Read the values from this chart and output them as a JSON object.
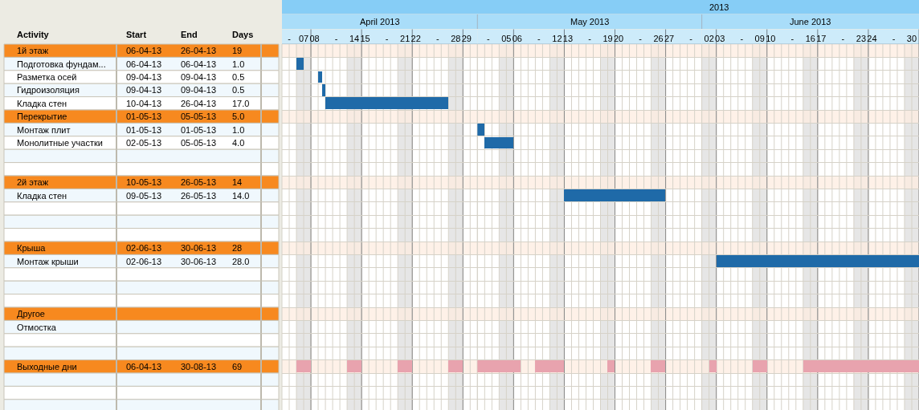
{
  "chart_data": [
    {
      "type": "other",
      "ylabel": "Activity",
      "categories": [
        "Start",
        "End",
        "Days"
      ],
      "y_categories": [
        "1й этаж",
        "Подготовка фундам...",
        "Разметка осей",
        "Гидроизоляция",
        "Кладка стен",
        "Перекрытие",
        "Монтаж плит",
        "Монолитные участки",
        null,
        null,
        "2й этаж",
        "Кладка стен",
        null,
        null,
        null,
        "Крыша",
        "Монтаж крыши",
        null,
        null,
        null,
        "Другое",
        "Отмостка",
        null,
        null,
        "Выходные дни",
        null,
        null,
        null
      ],
      "cell_labels": [
        [
          "06-04-13",
          "26-04-13",
          "19"
        ],
        [
          "06-04-13",
          "06-04-13",
          "1.0"
        ],
        [
          "09-04-13",
          "09-04-13",
          "0.5"
        ],
        [
          "09-04-13",
          "09-04-13",
          "0.5"
        ],
        [
          "10-04-13",
          "26-04-13",
          "17.0"
        ],
        [
          "01-05-13",
          "05-05-13",
          "5.0"
        ],
        [
          "01-05-13",
          "01-05-13",
          "1.0"
        ],
        [
          "02-05-13",
          "05-05-13",
          "4.0"
        ],
        [
          null,
          null,
          null
        ],
        [
          null,
          null,
          null
        ],
        [
          "10-05-13",
          "26-05-13",
          "14"
        ],
        [
          "09-05-13",
          "26-05-13",
          "14.0"
        ],
        [
          null,
          null,
          null
        ],
        [
          null,
          null,
          null
        ],
        [
          null,
          null,
          null
        ],
        [
          "02-06-13",
          "30-06-13",
          "28"
        ],
        [
          "02-06-13",
          "30-06-13",
          "28.0"
        ],
        [
          null,
          null,
          null
        ],
        [
          null,
          null,
          null
        ],
        [
          null,
          null,
          null
        ],
        [
          null,
          null,
          null
        ],
        [
          null,
          null,
          null
        ],
        [
          null,
          null,
          null
        ],
        [
          null,
          null,
          null
        ],
        [
          "06-04-13",
          "30-08-13",
          "69"
        ],
        [
          null,
          null,
          null
        ],
        [
          null,
          null,
          null
        ],
        [
          null,
          null,
          null
        ]
      ],
      "colors": [
        "#f7891f",
        "#f0f8fd",
        "#ffffff",
        "#f0f8fd",
        "#ffffff",
        "#f7891f",
        "#f0f8fd",
        "#ffffff",
        "#f0f8fd",
        "#ffffff",
        "#f7891f",
        "#f0f8fd",
        "#ffffff",
        "#f0f8fd",
        "#ffffff",
        "#f7891f",
        "#f0f8fd",
        "#ffffff",
        "#f0f8fd",
        "#ffffff",
        "#f7891f",
        "#f0f8fd",
        "#ffffff",
        "#f0f8fd",
        "#f7891f",
        "#f0f8fd",
        "#ffffff",
        "#f0f8fd"
      ]
    },
    {
      "type": "bar",
      "orientation": "horizontal",
      "title": "April 2013",
      "annotations": [
        "2013"
      ],
      "categories": [
        "1й этаж",
        "Подготовка фундам...",
        "Разметка осей",
        "Гидроизоляция",
        "Кладка стен",
        "Перекрытие",
        "Монтаж плит",
        "Монолитные участки",
        null,
        null,
        "2й этаж",
        "Кладка стен",
        null,
        null,
        null,
        "Крыша",
        "Монтаж крыши",
        null,
        null,
        null,
        "Другое",
        "Отмостка",
        null,
        null,
        "Выходные дни",
        null,
        null,
        null
      ],
      "tick_labels": "x",
      "series": [
        {
          "color": "#1f6aa8",
          "base": [
            null,
            6,
            9,
            9.5,
            10,
            null,
            null,
            null,
            null,
            null,
            null,
            null,
            null,
            null,
            null,
            null,
            null,
            null,
            null,
            null,
            null,
            null,
            null,
            null,
            null,
            null,
            null,
            null
          ],
          "values": [
            null,
            1,
            0.5,
            0.5,
            17,
            null,
            null,
            null,
            null,
            null,
            null,
            null,
            null,
            null,
            null,
            null,
            null,
            null,
            null,
            null,
            null,
            null,
            null,
            null,
            null,
            null,
            null,
            null
          ]
        },
        {
          "color": "#e8a3ae",
          "base": [
            null,
            null,
            null,
            null,
            null,
            null,
            null,
            null,
            null,
            null,
            null,
            null,
            null,
            null,
            null,
            null,
            null,
            null,
            null,
            null,
            null,
            null,
            null,
            null,
            6,
            null,
            null,
            null
          ],
          "values": [
            null,
            null,
            null,
            null,
            null,
            null,
            null,
            null,
            null,
            null,
            null,
            null,
            null,
            null,
            null,
            null,
            null,
            null,
            null,
            null,
            null,
            null,
            null,
            null,
            2,
            null,
            null,
            null
          ]
        },
        {
          "color": "#e8a3ae",
          "base": [
            null,
            null,
            null,
            null,
            null,
            null,
            null,
            null,
            null,
            null,
            null,
            null,
            null,
            null,
            null,
            null,
            null,
            null,
            null,
            null,
            null,
            null,
            null,
            null,
            13,
            null,
            null,
            null
          ],
          "values": [
            null,
            null,
            null,
            null,
            null,
            null,
            null,
            null,
            null,
            null,
            null,
            null,
            null,
            null,
            null,
            null,
            null,
            null,
            null,
            null,
            null,
            null,
            null,
            null,
            2,
            null,
            null,
            null
          ]
        },
        {
          "color": "#e8a3ae",
          "base": [
            null,
            null,
            null,
            null,
            null,
            null,
            null,
            null,
            null,
            null,
            null,
            null,
            null,
            null,
            null,
            null,
            null,
            null,
            null,
            null,
            null,
            null,
            null,
            null,
            20,
            null,
            null,
            null
          ],
          "values": [
            null,
            null,
            null,
            null,
            null,
            null,
            null,
            null,
            null,
            null,
            null,
            null,
            null,
            null,
            null,
            null,
            null,
            null,
            null,
            null,
            null,
            null,
            null,
            null,
            2,
            null,
            null,
            null
          ]
        },
        {
          "color": "#e8a3ae",
          "base": [
            null,
            null,
            null,
            null,
            null,
            null,
            null,
            null,
            null,
            null,
            null,
            null,
            null,
            null,
            null,
            null,
            null,
            null,
            null,
            null,
            null,
            null,
            null,
            null,
            27,
            null,
            null,
            null
          ],
          "values": [
            null,
            null,
            null,
            null,
            null,
            null,
            null,
            null,
            null,
            null,
            null,
            null,
            null,
            null,
            null,
            null,
            null,
            null,
            null,
            null,
            null,
            null,
            null,
            null,
            2,
            null,
            null,
            null
          ]
        }
      ],
      "xlim": [
        4,
        31
      ],
      "xticks": [
        {
          "value": 5,
          "label": "-"
        },
        {
          "value": 7,
          "label": "07"
        },
        {
          "value": 8.5,
          "label": "08"
        },
        {
          "value": 11.5,
          "label": "-"
        },
        {
          "value": 14,
          "label": "14"
        },
        {
          "value": 15.5,
          "label": "15"
        },
        {
          "value": 18.5,
          "label": "-"
        },
        {
          "value": 21,
          "label": "21"
        },
        {
          "value": 22.5,
          "label": "22"
        },
        {
          "value": 25.5,
          "label": "-"
        },
        {
          "value": 28,
          "label": "28"
        },
        {
          "value": 29.5,
          "label": "29"
        },
        {
          "value": 4,
          "label": null
        },
        {
          "value": 6,
          "label": null
        },
        {
          "value": 8,
          "label": null
        },
        {
          "value": 9,
          "label": null
        },
        {
          "value": 10,
          "label": null
        },
        {
          "value": 11,
          "label": null
        },
        {
          "value": 12,
          "label": null
        },
        {
          "value": 13,
          "label": null
        },
        {
          "value": 15,
          "label": null
        },
        {
          "value": 16,
          "label": null
        },
        {
          "value": 17,
          "label": null
        },
        {
          "value": 18,
          "label": null
        },
        {
          "value": 19,
          "label": null
        },
        {
          "value": 20,
          "label": null
        },
        {
          "value": 22,
          "label": null
        },
        {
          "value": 23,
          "label": null
        },
        {
          "value": 24,
          "label": null
        },
        {
          "value": 25,
          "label": null
        },
        {
          "value": 26,
          "label": null
        },
        {
          "value": 27,
          "label": null
        },
        {
          "value": 29,
          "label": null
        },
        {
          "value": 30,
          "label": null
        },
        {
          "value": 31,
          "label": null
        }
      ],
      "bands": [
        {
          "axis": "x",
          "from": 6,
          "to": 8,
          "color": "#e6e6e6"
        },
        {
          "axis": "x",
          "from": 13,
          "to": 15,
          "color": "#e6e6e6"
        },
        {
          "axis": "x",
          "from": 20,
          "to": 22,
          "color": "#e6e6e6"
        },
        {
          "axis": "x",
          "from": 27,
          "to": 29,
          "color": "#e6e6e6"
        },
        {
          "axis": "y",
          "from": "1й этаж",
          "to": "1й этаж",
          "color": "#fdece0"
        },
        {
          "axis": "y",
          "from": "Перекрытие",
          "to": "Перекрытие",
          "color": "#fdece0"
        },
        {
          "axis": "y",
          "from": "2й этаж",
          "to": "2й этаж",
          "color": "#fdece0"
        },
        {
          "axis": "y",
          "from": "Крыша",
          "to": "Крыша",
          "color": "#fdece0"
        },
        {
          "axis": "y",
          "from": "Другое",
          "to": "Другое",
          "color": "#fdece0"
        },
        {
          "axis": "y",
          "from": "Выходные дни",
          "to": "Выходные дни",
          "color": "#fdece0"
        }
      ],
      "grid": true
    },
    {
      "type": "bar",
      "orientation": "horizontal",
      "title": "May 2013",
      "categories": [
        "1й этаж",
        "Подготовка фундам...",
        "Разметка осей",
        "Гидроизоляция",
        "Кладка стен",
        "Перекрытие",
        "Монтаж плит",
        "Монолитные участки",
        null,
        null,
        "2й этаж",
        "Кладка стен",
        null,
        null,
        null,
        "Крыша",
        "Монтаж крыши",
        null,
        null,
        null,
        "Другое",
        "Отмостка",
        null,
        null,
        "Выходные дни",
        null,
        null,
        null
      ],
      "tick_labels": "x",
      "series": [
        {
          "color": "#1f6aa8",
          "base": [
            null,
            null,
            null,
            null,
            null,
            null,
            1,
            2,
            null,
            null,
            null,
            13,
            null,
            null,
            null,
            null,
            null,
            null,
            null,
            null,
            null,
            null,
            null,
            null,
            null,
            null,
            null,
            null
          ],
          "values": [
            null,
            null,
            null,
            null,
            null,
            null,
            1,
            4,
            null,
            null,
            null,
            14,
            null,
            null,
            null,
            null,
            null,
            null,
            null,
            null,
            null,
            null,
            null,
            null,
            null,
            null,
            null,
            null
          ]
        },
        {
          "color": "#e8a3ae",
          "base": [
            null,
            null,
            null,
            null,
            null,
            null,
            null,
            null,
            null,
            null,
            null,
            null,
            null,
            null,
            null,
            null,
            null,
            null,
            null,
            null,
            null,
            null,
            null,
            null,
            1,
            null,
            null,
            null
          ],
          "values": [
            null,
            null,
            null,
            null,
            null,
            null,
            null,
            null,
            null,
            null,
            null,
            null,
            null,
            null,
            null,
            null,
            null,
            null,
            null,
            null,
            null,
            null,
            null,
            null,
            6,
            null,
            null,
            null
          ]
        },
        {
          "color": "#e8a3ae",
          "base": [
            null,
            null,
            null,
            null,
            null,
            null,
            null,
            null,
            null,
            null,
            null,
            null,
            null,
            null,
            null,
            null,
            null,
            null,
            null,
            null,
            null,
            null,
            null,
            null,
            9,
            null,
            null,
            null
          ],
          "values": [
            null,
            null,
            null,
            null,
            null,
            null,
            null,
            null,
            null,
            null,
            null,
            null,
            null,
            null,
            null,
            null,
            null,
            null,
            null,
            null,
            null,
            null,
            null,
            null,
            4,
            null,
            null,
            null
          ]
        },
        {
          "color": "#e8a3ae",
          "base": [
            null,
            null,
            null,
            null,
            null,
            null,
            null,
            null,
            null,
            null,
            null,
            null,
            null,
            null,
            null,
            null,
            null,
            null,
            null,
            null,
            null,
            null,
            null,
            null,
            19,
            null,
            null,
            null
          ],
          "values": [
            null,
            null,
            null,
            null,
            null,
            null,
            null,
            null,
            null,
            null,
            null,
            null,
            null,
            null,
            null,
            null,
            null,
            null,
            null,
            null,
            null,
            null,
            null,
            null,
            1,
            null,
            null,
            null
          ]
        },
        {
          "color": "#e8a3ae",
          "base": [
            null,
            null,
            null,
            null,
            null,
            null,
            null,
            null,
            null,
            null,
            null,
            null,
            null,
            null,
            null,
            null,
            null,
            null,
            null,
            null,
            null,
            null,
            null,
            null,
            25,
            null,
            null,
            null
          ],
          "values": [
            null,
            null,
            null,
            null,
            null,
            null,
            null,
            null,
            null,
            null,
            null,
            null,
            null,
            null,
            null,
            null,
            null,
            null,
            null,
            null,
            null,
            null,
            null,
            null,
            2,
            null,
            null,
            null
          ]
        }
      ],
      "xlim": [
        1,
        32
      ],
      "xticks": [
        {
          "value": 2.5,
          "label": "-"
        },
        {
          "value": 5,
          "label": "05"
        },
        {
          "value": 6.5,
          "label": "06"
        },
        {
          "value": 9.5,
          "label": "-"
        },
        {
          "value": 12,
          "label": "12"
        },
        {
          "value": 13.5,
          "label": "13"
        },
        {
          "value": 16.5,
          "label": "-"
        },
        {
          "value": 19,
          "label": "19"
        },
        {
          "value": 20.5,
          "label": "20"
        },
        {
          "value": 23.5,
          "label": "-"
        },
        {
          "value": 26,
          "label": "26"
        },
        {
          "value": 27.5,
          "label": "27"
        },
        {
          "value": 30.5,
          "label": "-"
        },
        {
          "value": 1,
          "label": null
        },
        {
          "value": 2,
          "label": null
        },
        {
          "value": 3,
          "label": null
        },
        {
          "value": 4,
          "label": null
        },
        {
          "value": 6,
          "label": null
        },
        {
          "value": 7,
          "label": null
        },
        {
          "value": 8,
          "label": null
        },
        {
          "value": 9,
          "label": null
        },
        {
          "value": 10,
          "label": null
        },
        {
          "value": 11,
          "label": null
        },
        {
          "value": 13,
          "label": null
        },
        {
          "value": 14,
          "label": null
        },
        {
          "value": 15,
          "label": null
        },
        {
          "value": 16,
          "label": null
        },
        {
          "value": 17,
          "label": null
        },
        {
          "value": 18,
          "label": null
        },
        {
          "value": 20,
          "label": null
        },
        {
          "value": 21,
          "label": null
        },
        {
          "value": 22,
          "label": null
        },
        {
          "value": 23,
          "label": null
        },
        {
          "value": 24,
          "label": null
        },
        {
          "value": 25,
          "label": null
        },
        {
          "value": 27,
          "label": null
        },
        {
          "value": 28,
          "label": null
        },
        {
          "value": 29,
          "label": null
        },
        {
          "value": 30,
          "label": null
        },
        {
          "value": 31,
          "label": null
        },
        {
          "value": 32,
          "label": null
        }
      ],
      "bands": [
        {
          "axis": "x",
          "from": 4,
          "to": 6,
          "color": "#e6e6e6"
        },
        {
          "axis": "x",
          "from": 11,
          "to": 13,
          "color": "#e6e6e6"
        },
        {
          "axis": "x",
          "from": 18,
          "to": 20,
          "color": "#e6e6e6"
        },
        {
          "axis": "x",
          "from": 25,
          "to": 27,
          "color": "#e6e6e6"
        },
        {
          "axis": "y",
          "from": "1й этаж",
          "to": "1й этаж",
          "color": "#fdece0"
        },
        {
          "axis": "y",
          "from": "Перекрытие",
          "to": "Перекрытие",
          "color": "#fdece0"
        },
        {
          "axis": "y",
          "from": "2й этаж",
          "to": "2й этаж",
          "color": "#fdece0"
        },
        {
          "axis": "y",
          "from": "Крыша",
          "to": "Крыша",
          "color": "#fdece0"
        },
        {
          "axis": "y",
          "from": "Другое",
          "to": "Другое",
          "color": "#fdece0"
        },
        {
          "axis": "y",
          "from": "Выходные дни",
          "to": "Выходные дни",
          "color": "#fdece0"
        }
      ],
      "grid": true
    },
    {
      "type": "bar",
      "orientation": "horizontal",
      "title": "June 2013",
      "categories": [
        "1й этаж",
        "Подготовка фундам...",
        "Разметка осей",
        "Гидроизоляция",
        "Кладка стен",
        "Перекрытие",
        "Монтаж плит",
        "Монолитные участки",
        null,
        null,
        "2й этаж",
        "Кладка стен",
        null,
        null,
        null,
        "Крыша",
        "Монтаж крыши",
        null,
        null,
        null,
        "Другое",
        "Отмостка",
        null,
        null,
        "Выходные дни",
        null,
        null,
        null
      ],
      "tick_labels": "x",
      "series": [
        {
          "color": "#1f6aa8",
          "base": [
            null,
            null,
            null,
            null,
            null,
            null,
            null,
            null,
            null,
            null,
            null,
            null,
            null,
            null,
            null,
            null,
            3,
            null,
            null,
            null,
            null,
            null,
            null,
            null,
            null,
            null,
            null,
            null
          ],
          "values": [
            null,
            null,
            null,
            null,
            null,
            null,
            null,
            null,
            null,
            null,
            null,
            null,
            null,
            null,
            null,
            null,
            28,
            null,
            null,
            null,
            null,
            null,
            null,
            null,
            null,
            null,
            null,
            null
          ]
        },
        {
          "color": "#e8a3ae",
          "base": [
            null,
            null,
            null,
            null,
            null,
            null,
            null,
            null,
            null,
            null,
            null,
            null,
            null,
            null,
            null,
            null,
            null,
            null,
            null,
            null,
            null,
            null,
            null,
            null,
            2,
            null,
            null,
            null
          ],
          "values": [
            null,
            null,
            null,
            null,
            null,
            null,
            null,
            null,
            null,
            null,
            null,
            null,
            null,
            null,
            null,
            null,
            null,
            null,
            null,
            null,
            null,
            null,
            null,
            null,
            1,
            null,
            null,
            null
          ]
        },
        {
          "color": "#e8a3ae",
          "base": [
            null,
            null,
            null,
            null,
            null,
            null,
            null,
            null,
            null,
            null,
            null,
            null,
            null,
            null,
            null,
            null,
            null,
            null,
            null,
            null,
            null,
            null,
            null,
            null,
            8,
            null,
            null,
            null
          ],
          "values": [
            null,
            null,
            null,
            null,
            null,
            null,
            null,
            null,
            null,
            null,
            null,
            null,
            null,
            null,
            null,
            null,
            null,
            null,
            null,
            null,
            null,
            null,
            null,
            null,
            2,
            null,
            null,
            null
          ]
        },
        {
          "color": "#e8a3ae",
          "base": [
            null,
            null,
            null,
            null,
            null,
            null,
            null,
            null,
            null,
            null,
            null,
            null,
            null,
            null,
            null,
            null,
            null,
            null,
            null,
            null,
            null,
            null,
            null,
            null,
            15,
            null,
            null,
            null
          ],
          "values": [
            null,
            null,
            null,
            null,
            null,
            null,
            null,
            null,
            null,
            null,
            null,
            null,
            null,
            null,
            null,
            null,
            null,
            null,
            null,
            null,
            null,
            null,
            null,
            null,
            16,
            null,
            null,
            null
          ]
        }
      ],
      "xlim": [
        1,
        31
      ],
      "xticks": [
        {
          "value": 2,
          "label": "02"
        },
        {
          "value": 3.5,
          "label": "03"
        },
        {
          "value": 6.5,
          "label": "-"
        },
        {
          "value": 9,
          "label": "09"
        },
        {
          "value": 10.5,
          "label": "10"
        },
        {
          "value": 13.5,
          "label": "-"
        },
        {
          "value": 16,
          "label": "16"
        },
        {
          "value": 17.5,
          "label": "17"
        },
        {
          "value": 20.5,
          "label": "-"
        },
        {
          "value": 23,
          "label": "23"
        },
        {
          "value": 24.5,
          "label": "24"
        },
        {
          "value": 27.5,
          "label": "-"
        },
        {
          "value": 30,
          "label": "30"
        },
        {
          "value": 1,
          "label": null
        },
        {
          "value": 3,
          "label": null
        },
        {
          "value": 4,
          "label": null
        },
        {
          "value": 5,
          "label": null
        },
        {
          "value": 6,
          "label": null
        },
        {
          "value": 7,
          "label": null
        },
        {
          "value": 8,
          "label": null
        },
        {
          "value": 10,
          "label": null
        },
        {
          "value": 11,
          "label": null
        },
        {
          "value": 12,
          "label": null
        },
        {
          "value": 13,
          "label": null
        },
        {
          "value": 14,
          "label": null
        },
        {
          "value": 15,
          "label": null
        },
        {
          "value": 17,
          "label": null
        },
        {
          "value": 18,
          "label": null
        },
        {
          "value": 19,
          "label": null
        },
        {
          "value": 20,
          "label": null
        },
        {
          "value": 21,
          "label": null
        },
        {
          "value": 22,
          "label": null
        },
        {
          "value": 24,
          "label": null
        },
        {
          "value": 25,
          "label": null
        },
        {
          "value": 26,
          "label": null
        },
        {
          "value": 27,
          "label": null
        },
        {
          "value": 28,
          "label": null
        },
        {
          "value": 29,
          "label": null
        },
        {
          "value": 31,
          "label": null
        }
      ],
      "bands": [
        {
          "axis": "x",
          "from": 1,
          "to": 3,
          "color": "#e6e6e6"
        },
        {
          "axis": "x",
          "from": 8,
          "to": 10,
          "color": "#e6e6e6"
        },
        {
          "axis": "x",
          "from": 15,
          "to": 17,
          "color": "#e6e6e6"
        },
        {
          "axis": "x",
          "from": 22,
          "to": 24,
          "color": "#e6e6e6"
        },
        {
          "axis": "x",
          "from": 29,
          "to": 31,
          "color": "#e6e6e6"
        },
        {
          "axis": "y",
          "from": "1й этаж",
          "to": "1й этаж",
          "color": "#fdece0"
        },
        {
          "axis": "y",
          "from": "Перекрытие",
          "to": "Перекрытие",
          "color": "#fdece0"
        },
        {
          "axis": "y",
          "from": "2й этаж",
          "to": "2й этаж",
          "color": "#fdece0"
        },
        {
          "axis": "y",
          "from": "Крыша",
          "to": "Крыша",
          "color": "#fdece0"
        },
        {
          "axis": "y",
          "from": "Другое",
          "to": "Другое",
          "color": "#fdece0"
        },
        {
          "axis": "y",
          "from": "Выходные дни",
          "to": "Выходные дни",
          "color": "#fdece0"
        }
      ],
      "grid": true
    }
  ]
}
